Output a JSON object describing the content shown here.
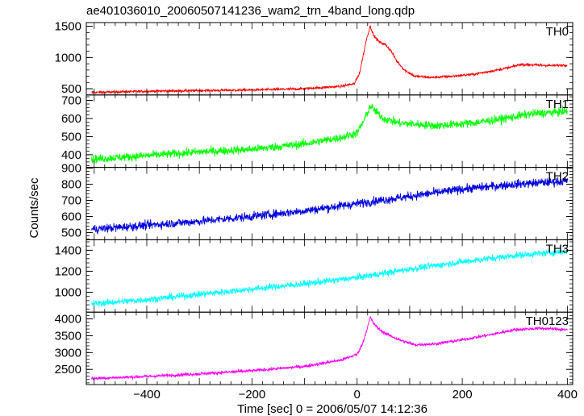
{
  "chart_data": {
    "type": "line",
    "title": "ae401036010_20060507141236_wam2_trn_4band_long.qdp",
    "xlabel": "Time [sec] 0 = 2006/05/07 14:12:36",
    "ylabel": "Counts/sec",
    "xlim": [
      -515,
      410
    ],
    "x_ticks": [
      "−400",
      "−200",
      "0",
      "200",
      "400"
    ],
    "x_tick_values": [
      -400,
      -200,
      0,
      200,
      400
    ],
    "panels": [
      {
        "name": "TH0",
        "color": "#ff0000",
        "ylim": [
          400,
          1560
        ],
        "y_ticks": [
          "500",
          "1000",
          "1500"
        ],
        "y_tick_values": [
          500,
          1000,
          1500
        ],
        "noise": 20,
        "points": [
          [
            -505,
            440
          ],
          [
            -400,
            460
          ],
          [
            -300,
            470
          ],
          [
            -200,
            480
          ],
          [
            -100,
            500
          ],
          [
            -30,
            540
          ],
          [
            -5,
            580
          ],
          [
            5,
            760
          ],
          [
            12,
            1050
          ],
          [
            18,
            1300
          ],
          [
            25,
            1500
          ],
          [
            32,
            1350
          ],
          [
            42,
            1250
          ],
          [
            55,
            1200
          ],
          [
            65,
            1100
          ],
          [
            75,
            950
          ],
          [
            90,
            800
          ],
          [
            110,
            700
          ],
          [
            140,
            680
          ],
          [
            180,
            700
          ],
          [
            220,
            730
          ],
          [
            260,
            790
          ],
          [
            290,
            840
          ],
          [
            310,
            890
          ],
          [
            340,
            880
          ],
          [
            370,
            870
          ],
          [
            400,
            880
          ]
        ]
      },
      {
        "name": "TH1",
        "color": "#00ff00",
        "ylim": [
          330,
          730
        ],
        "y_ticks": [
          "400",
          "500",
          "600",
          "700"
        ],
        "y_tick_values": [
          400,
          500,
          600,
          700
        ],
        "noise": 22,
        "points": [
          [
            -505,
            375
          ],
          [
            -400,
            395
          ],
          [
            -300,
            415
          ],
          [
            -200,
            430
          ],
          [
            -100,
            460
          ],
          [
            -30,
            495
          ],
          [
            0,
            520
          ],
          [
            15,
            600
          ],
          [
            25,
            670
          ],
          [
            35,
            640
          ],
          [
            50,
            600
          ],
          [
            80,
            575
          ],
          [
            150,
            560
          ],
          [
            220,
            575
          ],
          [
            280,
            600
          ],
          [
            330,
            625
          ],
          [
            400,
            640
          ]
        ]
      },
      {
        "name": "TH2",
        "color": "#0000dd",
        "ylim": [
          455,
          905
        ],
        "y_ticks": [
          "500",
          "600",
          "700",
          "800",
          "900"
        ],
        "y_tick_values": [
          500,
          600,
          700,
          800,
          900
        ],
        "noise": 26,
        "points": [
          [
            -505,
            520
          ],
          [
            -400,
            545
          ],
          [
            -300,
            570
          ],
          [
            -200,
            600
          ],
          [
            -100,
            635
          ],
          [
            0,
            680
          ],
          [
            100,
            725
          ],
          [
            200,
            770
          ],
          [
            300,
            800
          ],
          [
            400,
            820
          ]
        ]
      },
      {
        "name": "TH3",
        "color": "#00ffff",
        "ylim": [
          810,
          1500
        ],
        "y_ticks": [
          "1000",
          "1200",
          "1400"
        ],
        "y_tick_values": [
          1000,
          1200,
          1400
        ],
        "noise": 30,
        "points": [
          [
            -505,
            890
          ],
          [
            -400,
            930
          ],
          [
            -300,
            980
          ],
          [
            -200,
            1030
          ],
          [
            -100,
            1080
          ],
          [
            0,
            1140
          ],
          [
            100,
            1220
          ],
          [
            200,
            1290
          ],
          [
            300,
            1350
          ],
          [
            400,
            1390
          ]
        ]
      },
      {
        "name": "TH0123",
        "color": "#ff00ff",
        "ylim": [
          2050,
          4200
        ],
        "y_ticks": [
          "2500",
          "3000",
          "3500",
          "4000"
        ],
        "y_tick_values": [
          2500,
          3000,
          3500,
          4000
        ],
        "noise": 45,
        "points": [
          [
            -505,
            2230
          ],
          [
            -400,
            2290
          ],
          [
            -300,
            2370
          ],
          [
            -200,
            2460
          ],
          [
            -100,
            2590
          ],
          [
            -30,
            2780
          ],
          [
            0,
            2950
          ],
          [
            10,
            3250
          ],
          [
            18,
            3650
          ],
          [
            25,
            4050
          ],
          [
            32,
            3850
          ],
          [
            45,
            3650
          ],
          [
            60,
            3520
          ],
          [
            80,
            3380
          ],
          [
            110,
            3230
          ],
          [
            150,
            3260
          ],
          [
            200,
            3380
          ],
          [
            250,
            3520
          ],
          [
            300,
            3680
          ],
          [
            350,
            3720
          ],
          [
            400,
            3680
          ]
        ]
      }
    ]
  }
}
